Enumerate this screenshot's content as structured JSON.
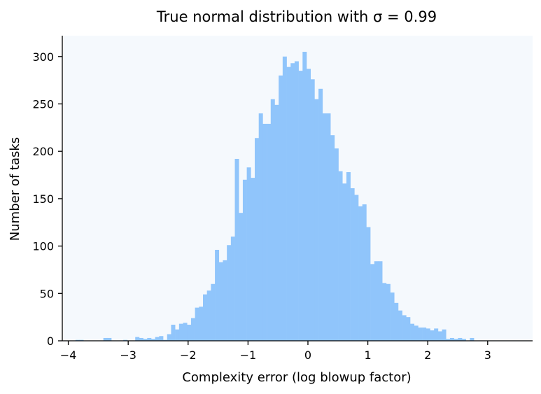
{
  "chart_data": {
    "type": "bar",
    "title": "True normal distribution with σ = 0.99",
    "xlabel": "Complexity error (log blowup factor)",
    "ylabel": "Number of tasks",
    "xlim": [
      -4.1,
      3.75
    ],
    "ylim": [
      0,
      322
    ],
    "x_ticks": [
      -4,
      -3,
      -2,
      -1,
      0,
      1,
      2,
      3
    ],
    "x_tick_labels": [
      "−4",
      "−3",
      "−2",
      "−1",
      "0",
      "1",
      "2",
      "3"
    ],
    "y_ticks": [
      0,
      50,
      100,
      150,
      200,
      250,
      300
    ],
    "y_tick_labels": [
      "0",
      "50",
      "100",
      "150",
      "200",
      "250",
      "300"
    ],
    "bin_start": -3.88,
    "bin_width": 0.0665,
    "values": [
      1,
      1,
      0,
      0,
      0,
      0,
      0,
      3,
      3,
      0,
      0,
      0,
      1,
      0,
      0,
      4,
      3,
      2,
      3,
      2,
      4,
      5,
      1,
      7,
      17,
      12,
      18,
      19,
      17,
      24,
      35,
      36,
      49,
      53,
      60,
      96,
      83,
      85,
      101,
      110,
      192,
      135,
      170,
      183,
      172,
      214,
      240,
      229,
      229,
      255,
      249,
      280,
      300,
      289,
      293,
      295,
      285,
      305,
      287,
      276,
      255,
      266,
      240,
      240,
      217,
      203,
      179,
      166,
      178,
      161,
      154,
      142,
      144,
      120,
      81,
      84,
      84,
      61,
      60,
      51,
      40,
      32,
      27,
      25,
      18,
      16,
      14,
      14,
      13,
      11,
      13,
      10,
      12,
      2,
      3,
      2,
      3,
      2,
      0,
      3
    ],
    "grid": false,
    "legend": "none",
    "colors": {
      "bar": "#90c5fb",
      "plot_background": "#f5f9fd",
      "axis": "#000000"
    }
  }
}
